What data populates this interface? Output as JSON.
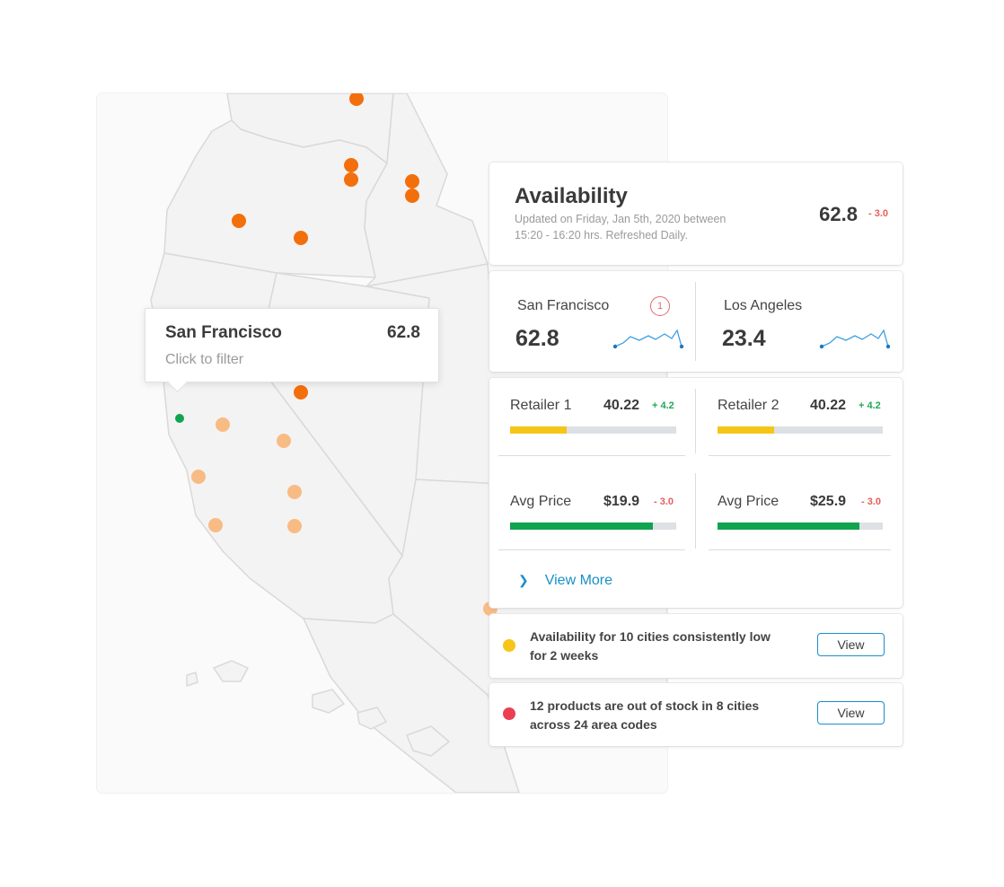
{
  "tooltip": {
    "city": "San Francisco",
    "value": "62.8",
    "hint": "Click to filter"
  },
  "availability": {
    "title": "Availability",
    "updated": "Updated on Friday, Jan 5th, 2020 between 15:20 - 16:20 hrs. Refreshed Daily.",
    "value": "62.8",
    "delta": "- 3.0"
  },
  "cities": [
    {
      "name": "San Francisco",
      "value": "62.8",
      "badge": "1"
    },
    {
      "name": "Los Angeles",
      "value": "23.4"
    }
  ],
  "metrics": [
    {
      "label": "Retailer 1",
      "value": "40.22",
      "delta": "+ 4.2",
      "progress": 0.34,
      "color": "#f5c518"
    },
    {
      "label": "Retailer 2",
      "value": "40.22",
      "delta": "+ 4.2",
      "progress": 0.34,
      "color": "#f5c518"
    },
    {
      "label": "Avg Price",
      "value": "$19.9",
      "delta": "- 3.0",
      "progress": 0.86,
      "color": "#11a44f"
    },
    {
      "label": "Avg Price",
      "value": "$25.9",
      "delta": "- 3.0",
      "progress": 0.86,
      "color": "#11a44f"
    }
  ],
  "view_more": "View More",
  "alerts": [
    {
      "text": "Availability for 10 cities consistently low for 2 weeks",
      "color": "#f5c518",
      "button": "View"
    },
    {
      "text": "12 products are out of stock in 8 cities across 24 area codes",
      "color": "#ec3e52",
      "button": "View"
    }
  ],
  "colors": {
    "marker_dark": "#f36f0c",
    "marker_light": "#f9bb84",
    "marker_selected": "#11a44f",
    "link": "#1a8fc9",
    "positive": "#1fa85a",
    "negative": "#e85d5d"
  }
}
